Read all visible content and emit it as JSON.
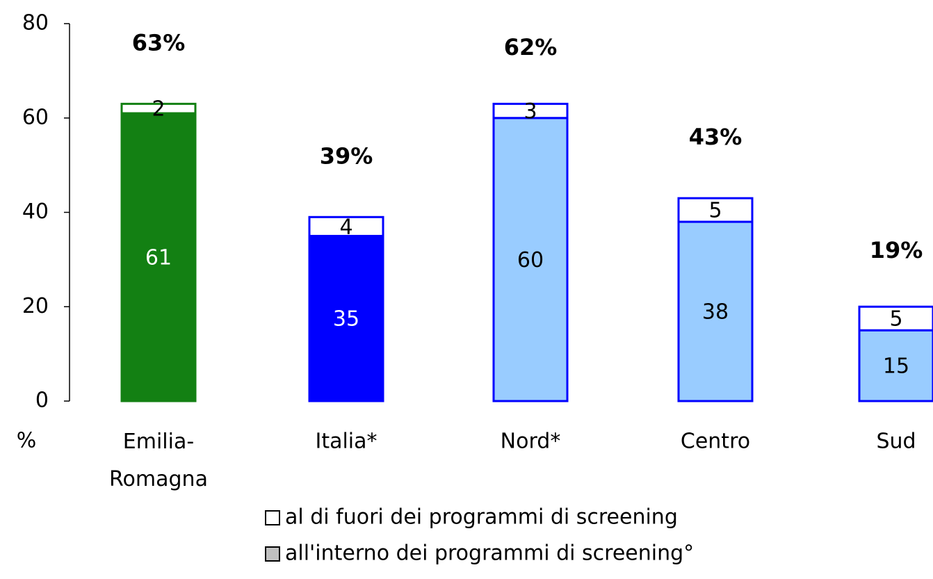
{
  "chart_data": {
    "type": "stacked_bar",
    "categories": [
      "Emilia-Romagna",
      "Italia*",
      "Nord*",
      "Centro",
      "Sud"
    ],
    "series": [
      {
        "name": "all'interno dei programmi di screening°",
        "color": "#c0c0c0",
        "values": [
          61,
          35,
          60,
          38,
          15
        ]
      },
      {
        "name": "al di fuori dei programmi di screening",
        "color": "#ffffff",
        "values": [
          2,
          4,
          3,
          5,
          5
        ]
      }
    ],
    "totals": [
      63,
      39,
      62,
      43,
      19
    ],
    "total_labels": [
      "63%",
      "39%",
      "62%",
      "43%",
      "19%"
    ],
    "bar_colors": [
      "#138013",
      "#0000ff",
      "#99ccff",
      "#99ccff",
      "#99ccff"
    ],
    "edge_colors": [
      "#138013",
      "#0000ff",
      "#0000ff",
      "#0000ff",
      "#0000ff"
    ],
    "label_colors": [
      "#ffffff",
      "#ffffff",
      "#000000",
      "#000000",
      "#000000"
    ],
    "y_label": "%",
    "ylim": [
      0,
      80
    ],
    "yticks": [
      0,
      20,
      40,
      60,
      80
    ]
  }
}
